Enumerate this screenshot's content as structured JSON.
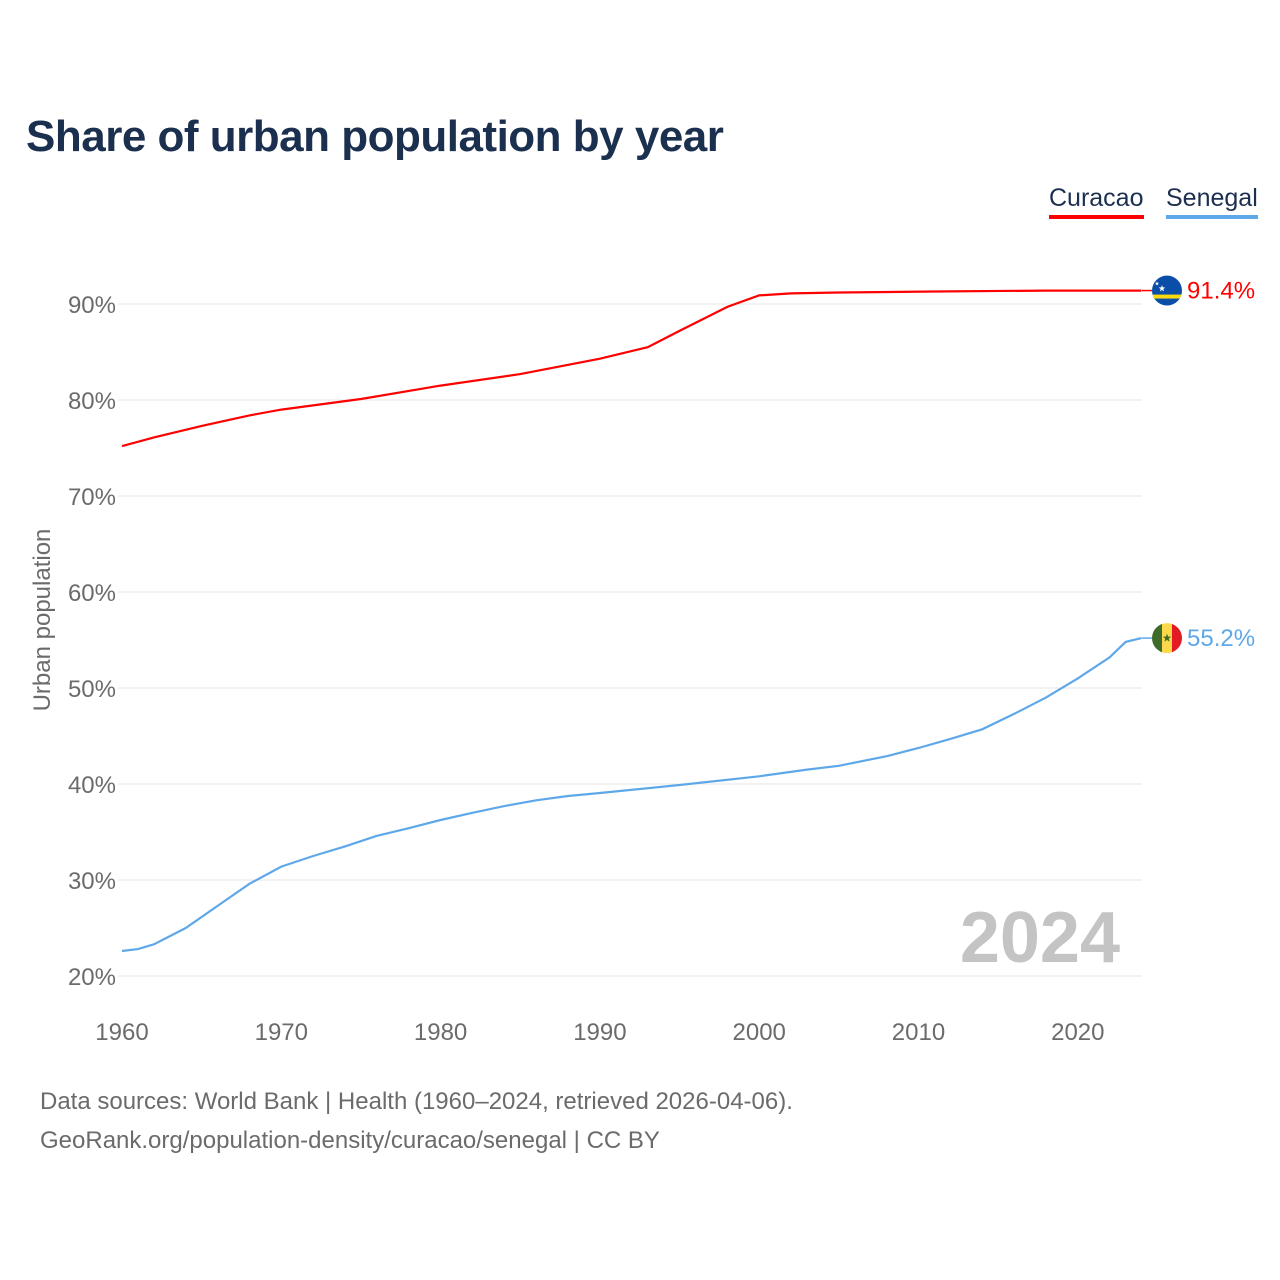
{
  "chart_data": {
    "type": "line",
    "title": "Share of urban population by year",
    "xlabel": "",
    "ylabel": "Urban population",
    "xlim": [
      1960,
      2024
    ],
    "ylim": [
      20,
      95
    ],
    "x_ticks": [
      "1960",
      "1970",
      "1980",
      "1990",
      "2000",
      "2010",
      "2020"
    ],
    "y_ticks": [
      "20%",
      "30%",
      "40%",
      "50%",
      "60%",
      "70%",
      "80%",
      "90%"
    ],
    "y_tick_values": [
      20,
      30,
      40,
      50,
      60,
      70,
      80,
      90
    ],
    "grid": true,
    "legend_position": "top-right",
    "year_watermark": "2024",
    "series": [
      {
        "name": "Curacao",
        "color": "#ff0000",
        "end_label": "91.4%",
        "x": [
          1960,
          1962,
          1965,
          1968,
          1970,
          1975,
          1980,
          1985,
          1990,
          1993,
          1995,
          1998,
          2000,
          2002,
          2005,
          2011,
          2018,
          2024
        ],
        "y": [
          75.2,
          76.1,
          77.3,
          78.4,
          79.0,
          80.1,
          81.5,
          82.7,
          84.3,
          85.5,
          87.2,
          89.7,
          90.9,
          91.1,
          91.2,
          91.3,
          91.4,
          91.4
        ]
      },
      {
        "name": "Senegal",
        "color": "#5ea8ea",
        "end_label": "55.2%",
        "x": [
          1960,
          1961,
          1962,
          1964,
          1966,
          1968,
          1970,
          1972,
          1974,
          1976,
          1978,
          1980,
          1982,
          1984,
          1986,
          1988,
          1990,
          1995,
          2000,
          2003,
          2005,
          2008,
          2010,
          2012,
          2014,
          2016,
          2018,
          2020,
          2022,
          2023,
          2024
        ],
        "y": [
          22.6,
          22.8,
          23.3,
          25.0,
          27.3,
          29.6,
          31.4,
          32.5,
          33.5,
          34.6,
          35.4,
          36.25,
          37.0,
          37.7,
          38.3,
          38.75,
          39.06,
          39.9,
          40.8,
          41.5,
          41.9,
          42.9,
          43.75,
          44.7,
          45.7,
          47.3,
          49.0,
          51.0,
          53.2,
          54.8,
          55.2
        ]
      }
    ]
  },
  "footer": {
    "line1": "Data sources: World Bank | Health (1960–2024, retrieved 2026-04-06).",
    "line2": "GeoRank.org/population-density/curacao/senegal | CC BY"
  }
}
